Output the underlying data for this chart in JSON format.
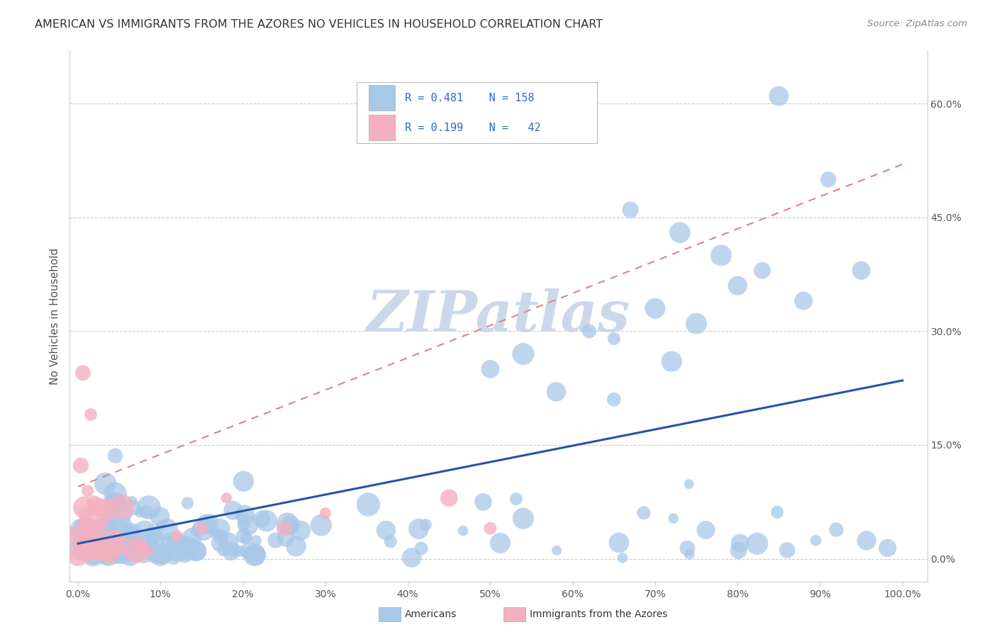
{
  "title": "AMERICAN VS IMMIGRANTS FROM THE AZORES NO VEHICLES IN HOUSEHOLD CORRELATION CHART",
  "source": "Source: ZipAtlas.com",
  "ylabel": "No Vehicles in Household",
  "watermark": "ZIPatlas",
  "am_color": "#a8c8e8",
  "az_color": "#f4b0c0",
  "am_line_color": "#2255aa",
  "az_line_color": "#e08090",
  "legend_R_am": "0.481",
  "legend_N_am": "158",
  "legend_R_az": "0.199",
  "legend_N_az": "42",
  "am_line_y0": 0.02,
  "am_line_y1": 0.235,
  "az_line_y0": 0.095,
  "az_line_y1": 0.52,
  "yticks": [
    0.0,
    0.15,
    0.3,
    0.45,
    0.6
  ],
  "xticks": [
    0.0,
    0.1,
    0.2,
    0.3,
    0.4,
    0.5,
    0.6,
    0.7,
    0.8,
    0.9,
    1.0
  ],
  "xlim": [
    -0.01,
    1.03
  ],
  "ylim": [
    -0.03,
    0.67
  ]
}
